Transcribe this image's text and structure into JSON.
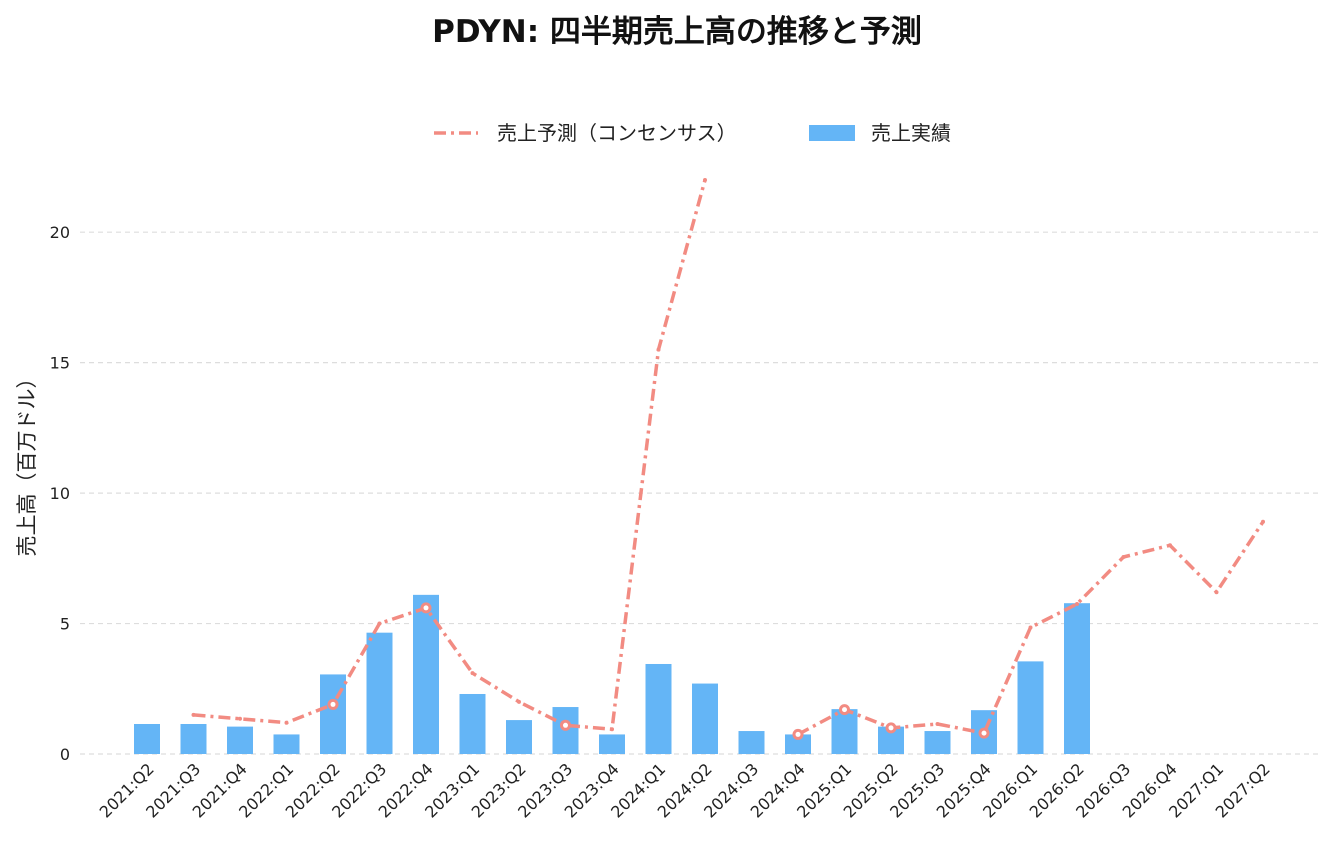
{
  "chart_data": {
    "type": "bar",
    "title": "PDYN: 四半期売上高の推移と予測",
    "xlabel": "",
    "ylabel": "売上高（百万ドル）",
    "ylim": [
      0,
      22
    ],
    "yticks": [
      0,
      5,
      10,
      15,
      20
    ],
    "grid": true,
    "legend_position": "top-center",
    "categories": [
      "2021:Q2",
      "2021:Q3",
      "2021:Q4",
      "2022:Q1",
      "2022:Q2",
      "2022:Q3",
      "2022:Q4",
      "2023:Q1",
      "2023:Q2",
      "2023:Q3",
      "2023:Q4",
      "2024:Q1",
      "2024:Q2",
      "2024:Q3",
      "2024:Q4",
      "2025:Q1",
      "2025:Q2",
      "2025:Q3",
      "2025:Q4",
      "2026:Q1",
      "2026:Q2",
      "2026:Q3",
      "2026:Q4",
      "2027:Q1",
      "2027:Q2"
    ],
    "series": [
      {
        "name": "売上予測（コンセンサス）",
        "kind": "line",
        "style": "dash-dot",
        "color": "#f28b82",
        "values": [
          null,
          1.5,
          1.35,
          1.2,
          1.9,
          5.0,
          5.6,
          3.1,
          2.0,
          1.1,
          0.95,
          15.5,
          22.0,
          null,
          0.75,
          1.7,
          1.0,
          1.15,
          0.8,
          4.85,
          5.75,
          7.55,
          8.0,
          6.2,
          8.9
        ],
        "marked_with_circle": [
          false,
          false,
          false,
          false,
          true,
          false,
          true,
          false,
          false,
          true,
          false,
          false,
          false,
          false,
          true,
          true,
          true,
          false,
          true,
          false,
          false,
          false,
          false,
          false,
          false
        ]
      },
      {
        "name": "売上実績",
        "kind": "bar",
        "color": "#64b5f6",
        "values": [
          1.15,
          1.15,
          1.05,
          0.75,
          3.05,
          4.65,
          6.1,
          2.3,
          1.3,
          1.8,
          0.75,
          3.45,
          2.7,
          0.88,
          0.75,
          1.72,
          1.05,
          0.88,
          1.68,
          3.55,
          5.78,
          null,
          null,
          null,
          null
        ]
      }
    ]
  }
}
